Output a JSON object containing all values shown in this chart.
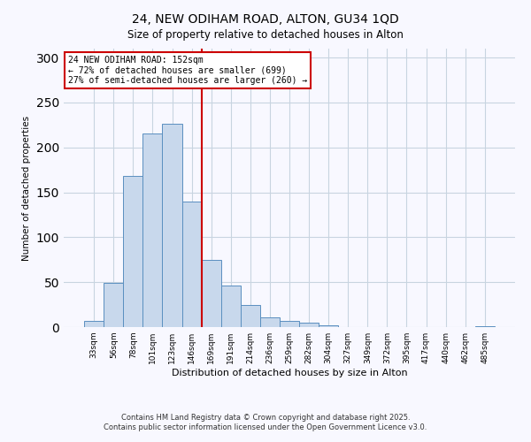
{
  "title1": "24, NEW ODIHAM ROAD, ALTON, GU34 1QD",
  "title2": "Size of property relative to detached houses in Alton",
  "xlabel": "Distribution of detached houses by size in Alton",
  "ylabel": "Number of detached properties",
  "bar_labels": [
    "33sqm",
    "56sqm",
    "78sqm",
    "101sqm",
    "123sqm",
    "146sqm",
    "169sqm",
    "191sqm",
    "214sqm",
    "236sqm",
    "259sqm",
    "282sqm",
    "304sqm",
    "327sqm",
    "349sqm",
    "372sqm",
    "395sqm",
    "417sqm",
    "440sqm",
    "462sqm",
    "485sqm"
  ],
  "bar_heights": [
    7,
    49,
    168,
    216,
    226,
    140,
    75,
    46,
    25,
    11,
    7,
    5,
    2,
    0,
    0,
    0,
    0,
    0,
    0,
    0,
    1
  ],
  "bar_color": "#c8d8ec",
  "bar_edge_color": "#5a8fc0",
  "ylim": [
    0,
    310
  ],
  "yticks": [
    0,
    50,
    100,
    150,
    200,
    250,
    300
  ],
  "vline_x": 5.5,
  "vline_color": "#cc0000",
  "annotation_lines": [
    "24 NEW ODIHAM ROAD: 152sqm",
    "← 72% of detached houses are smaller (699)",
    "27% of semi-detached houses are larger (260) →"
  ],
  "annotation_box_color": "#cc0000",
  "footer1": "Contains HM Land Registry data © Crown copyright and database right 2025.",
  "footer2": "Contains public sector information licensed under the Open Government Licence v3.0.",
  "background_color": "#f8f8ff",
  "grid_color": "#c8d4e0"
}
